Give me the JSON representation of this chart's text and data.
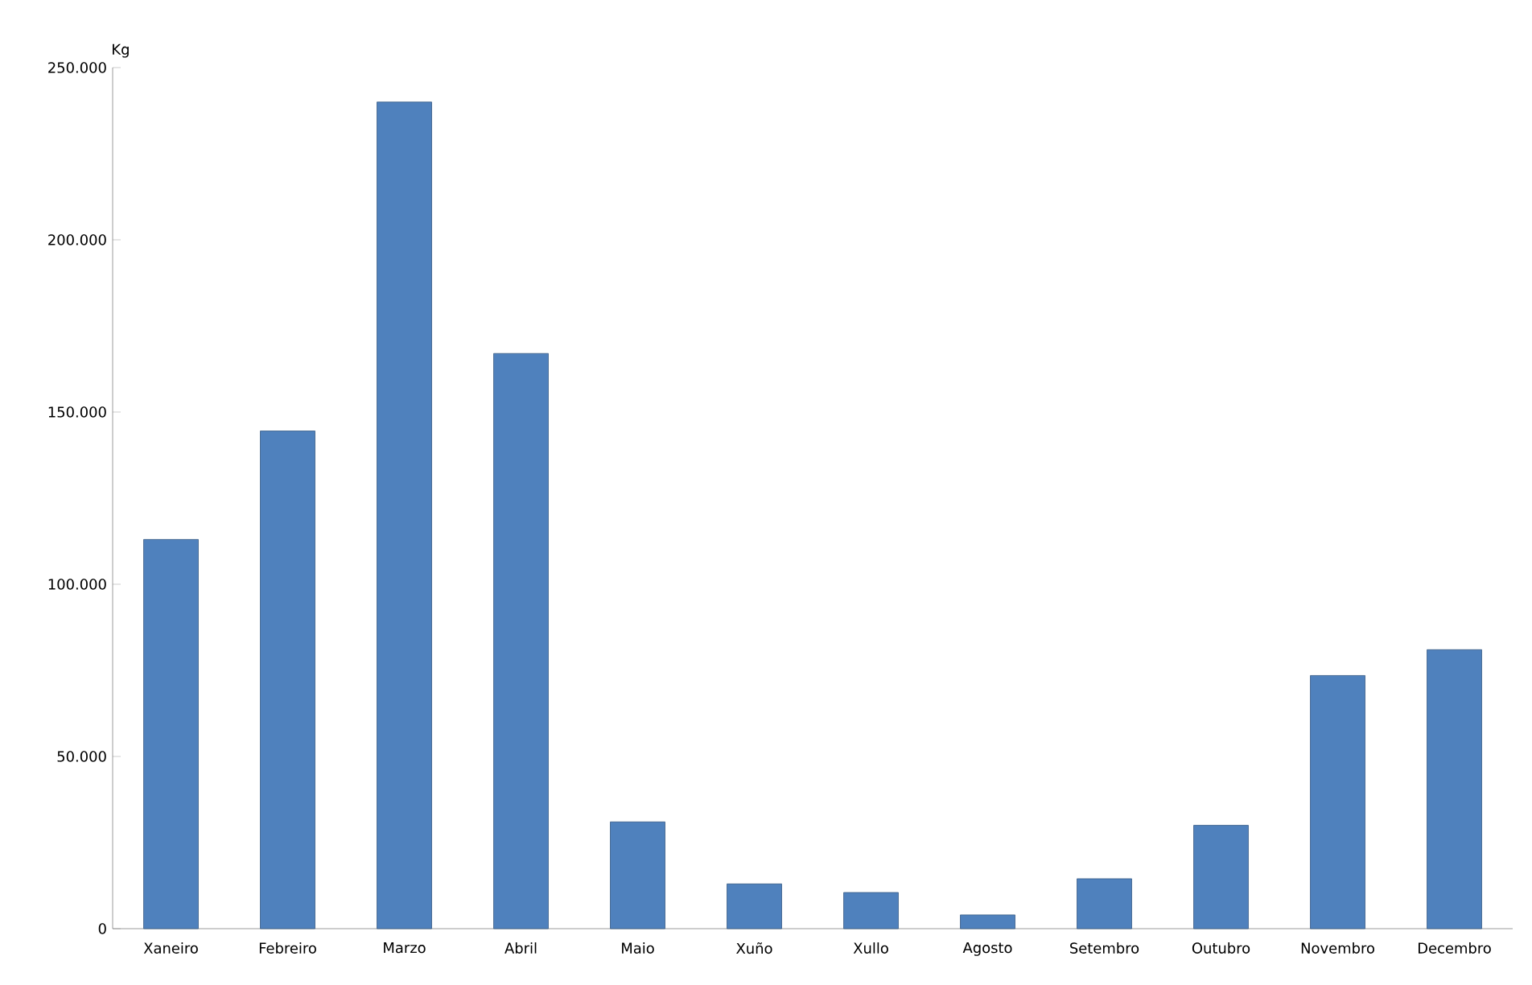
{
  "chart_data": {
    "type": "bar",
    "ylabel": "Kg",
    "categories": [
      "Xaneiro",
      "Febreiro",
      "Marzo",
      "Abril",
      "Maio",
      "Xuño",
      "Xullo",
      "Agosto",
      "Setembro",
      "Outubro",
      "Novembro",
      "Decembro"
    ],
    "values": [
      113000,
      144500,
      240000,
      167000,
      31000,
      13000,
      10500,
      4000,
      14500,
      30000,
      73500,
      81000
    ],
    "color": "#4f81bd",
    "ylim": [
      0,
      250000
    ],
    "yticks": [
      {
        "value": 0,
        "label": "0"
      },
      {
        "value": 50000,
        "label": "50.000"
      },
      {
        "value": 100000,
        "label": "100.000"
      },
      {
        "value": 150000,
        "label": "150.000"
      },
      {
        "value": 200000,
        "label": "200.000"
      },
      {
        "value": 250000,
        "label": "250.000"
      }
    ],
    "grid": false,
    "legend": false
  }
}
